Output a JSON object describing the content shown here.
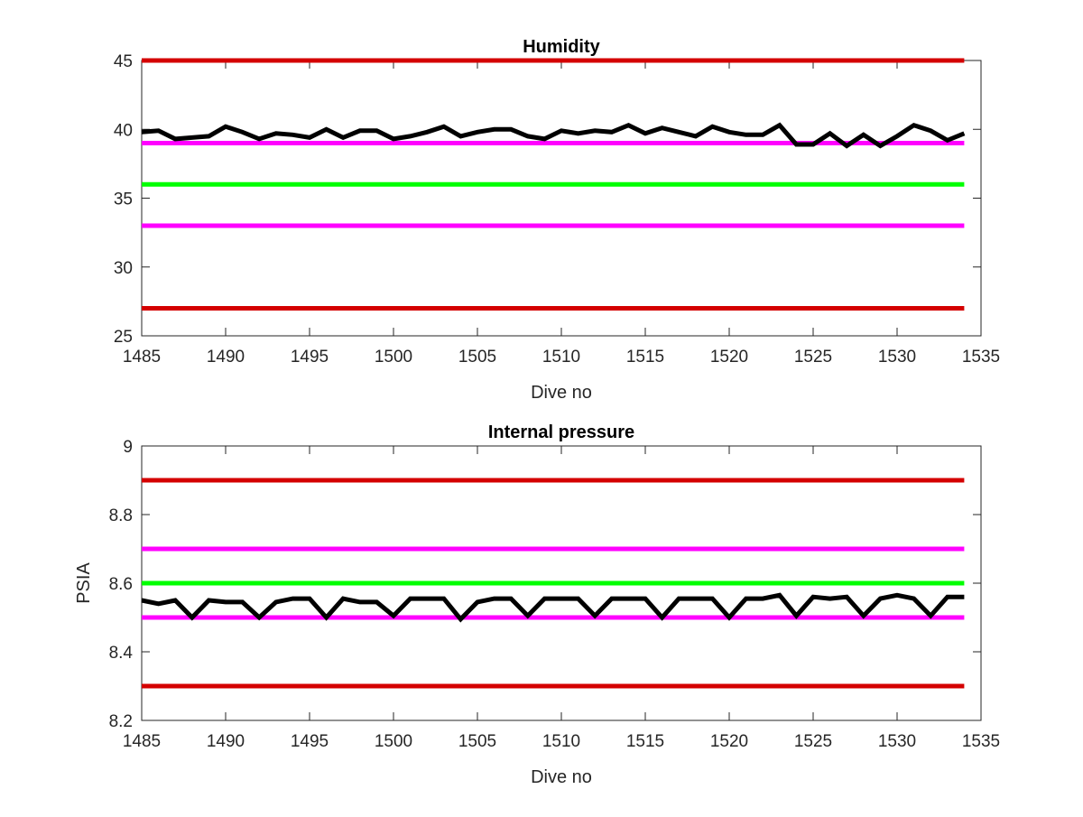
{
  "chart_data": [
    {
      "type": "line",
      "title": "Humidity",
      "xlabel": "Dive no",
      "ylabel": "",
      "xlim": [
        1485,
        1535
      ],
      "ylim": [
        25,
        45
      ],
      "xticks": [
        1485,
        1490,
        1495,
        1500,
        1505,
        1510,
        1515,
        1520,
        1525,
        1530,
        1535
      ],
      "yticks": [
        25,
        30,
        35,
        40,
        45
      ],
      "grid": false,
      "series": [
        {
          "color": "#000000",
          "x": [
            1485,
            1486,
            1487,
            1488,
            1489,
            1490,
            1491,
            1492,
            1493,
            1494,
            1495,
            1496,
            1497,
            1498,
            1499,
            1500,
            1501,
            1502,
            1503,
            1504,
            1505,
            1506,
            1507,
            1508,
            1509,
            1510,
            1511,
            1512,
            1513,
            1514,
            1515,
            1516,
            1517,
            1518,
            1519,
            1520,
            1521,
            1522,
            1523,
            1524,
            1525,
            1526,
            1527,
            1528,
            1529,
            1530,
            1531,
            1532,
            1533,
            1534
          ],
          "y": [
            39.8,
            39.9,
            39.3,
            39.4,
            39.5,
            40.2,
            39.8,
            39.3,
            39.7,
            39.6,
            39.4,
            40.0,
            39.4,
            39.9,
            39.9,
            39.3,
            39.5,
            39.8,
            40.2,
            39.5,
            39.8,
            40.0,
            40.0,
            39.5,
            39.3,
            39.9,
            39.7,
            39.9,
            39.8,
            40.3,
            39.7,
            40.1,
            39.8,
            39.5,
            40.2,
            39.8,
            39.6,
            39.6,
            40.3,
            38.9,
            38.9,
            39.7,
            38.8,
            39.6,
            38.8,
            39.5,
            40.3,
            39.9,
            39.2,
            39.7
          ]
        }
      ],
      "reference_lines": [
        {
          "y": 45,
          "color": "#d40000"
        },
        {
          "y": 39,
          "color": "#ff00ff"
        },
        {
          "y": 36,
          "color": "#00ff00"
        },
        {
          "y": 33,
          "color": "#ff00ff"
        },
        {
          "y": 27,
          "color": "#d40000"
        }
      ]
    },
    {
      "type": "line",
      "title": "Internal pressure",
      "xlabel": "Dive no",
      "ylabel": "PSIA",
      "xlim": [
        1485,
        1535
      ],
      "ylim": [
        8.2,
        9
      ],
      "xticks": [
        1485,
        1490,
        1495,
        1500,
        1505,
        1510,
        1515,
        1520,
        1525,
        1530,
        1535
      ],
      "yticks": [
        8.2,
        8.4,
        8.6,
        8.8,
        9
      ],
      "grid": false,
      "series": [
        {
          "color": "#000000",
          "x": [
            1485,
            1486,
            1487,
            1488,
            1489,
            1490,
            1491,
            1492,
            1493,
            1494,
            1495,
            1496,
            1497,
            1498,
            1499,
            1500,
            1501,
            1502,
            1503,
            1504,
            1505,
            1506,
            1507,
            1508,
            1509,
            1510,
            1511,
            1512,
            1513,
            1514,
            1515,
            1516,
            1517,
            1518,
            1519,
            1520,
            1521,
            1522,
            1523,
            1524,
            1525,
            1526,
            1527,
            1528,
            1529,
            1530,
            1531,
            1532,
            1533,
            1534
          ],
          "y": [
            8.55,
            8.54,
            8.55,
            8.5,
            8.55,
            8.545,
            8.545,
            8.5,
            8.545,
            8.555,
            8.555,
            8.5,
            8.555,
            8.545,
            8.545,
            8.505,
            8.555,
            8.555,
            8.555,
            8.495,
            8.545,
            8.555,
            8.555,
            8.505,
            8.555,
            8.555,
            8.555,
            8.505,
            8.555,
            8.555,
            8.555,
            8.5,
            8.555,
            8.555,
            8.555,
            8.5,
            8.555,
            8.555,
            8.565,
            8.505,
            8.56,
            8.555,
            8.56,
            8.505,
            8.555,
            8.565,
            8.555,
            8.505,
            8.56,
            8.56
          ]
        }
      ],
      "reference_lines": [
        {
          "y": 8.9,
          "color": "#d40000"
        },
        {
          "y": 8.7,
          "color": "#ff00ff"
        },
        {
          "y": 8.6,
          "color": "#00ff00"
        },
        {
          "y": 8.5,
          "color": "#ff00ff"
        },
        {
          "y": 8.3,
          "color": "#d40000"
        }
      ]
    }
  ]
}
